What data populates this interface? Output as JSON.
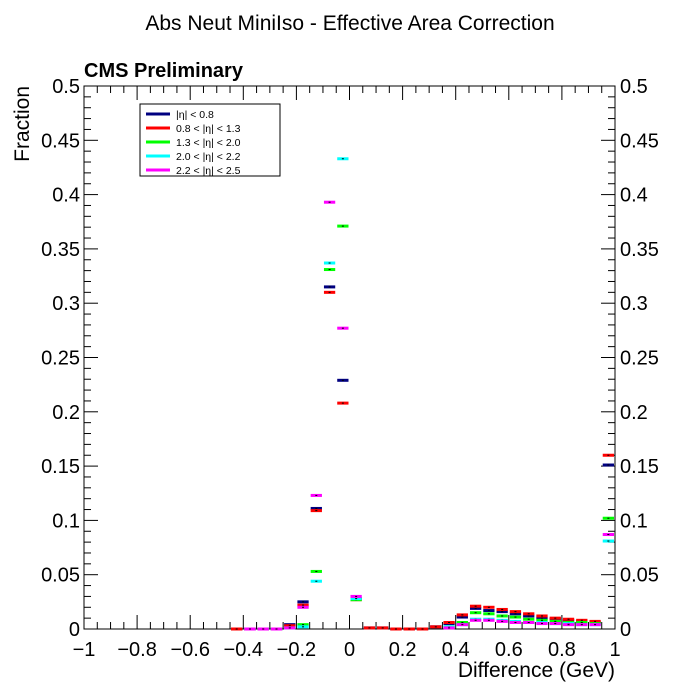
{
  "chart_data": {
    "type": "step",
    "title": "Abs Neut MiniIso - Effective Area Correction",
    "label": "CMS Preliminary",
    "xlabel": "Difference (GeV)",
    "ylabel": "Fraction",
    "xlim": [
      -1,
      1
    ],
    "ylim": [
      0,
      0.5
    ],
    "bin_width": 0.05,
    "x_ticks": [
      "−1",
      "−0.8",
      "−0.6",
      "−0.4",
      "−0.2",
      "0",
      "0.2",
      "0.4",
      "0.6",
      "0.8",
      "1"
    ],
    "x_tick_values": [
      -1,
      -0.8,
      -0.6,
      -0.4,
      -0.2,
      0,
      0.2,
      0.4,
      0.6,
      0.8,
      1
    ],
    "y_ticks_left": [
      "0",
      "0.05",
      "0.1",
      "0.15",
      "0.2",
      "0.25",
      "0.3",
      "0.35",
      "0.4",
      "0.45",
      "0.5"
    ],
    "y_ticks_right": [
      "0",
      "0.05",
      "0.1",
      "0.15",
      "0.2",
      "0.25",
      "0.3",
      "0.35",
      "0.4",
      "0.45",
      "0.5"
    ],
    "y_tick_values": [
      0,
      0.05,
      0.1,
      0.15,
      0.2,
      0.25,
      0.3,
      0.35,
      0.4,
      0.45,
      0.5
    ],
    "legend_position": "top-left",
    "series": [
      {
        "name": "|η| < 0.8",
        "color": "#000080",
        "points": [
          [
            -0.425,
            0
          ],
          [
            -0.375,
            0
          ],
          [
            -0.325,
            0
          ],
          [
            -0.275,
            0
          ],
          [
            -0.225,
            0.004
          ],
          [
            -0.175,
            0.025
          ],
          [
            -0.125,
            0.111
          ],
          [
            -0.075,
            0.315
          ],
          [
            -0.025,
            0.229
          ],
          [
            0.025,
            0.028
          ],
          [
            0.075,
            0.001
          ],
          [
            0.125,
            0.001
          ],
          [
            0.175,
            0
          ],
          [
            0.225,
            0
          ],
          [
            0.275,
            0
          ],
          [
            0.325,
            0.002
          ],
          [
            0.375,
            0.005
          ],
          [
            0.425,
            0.011
          ],
          [
            0.475,
            0.019
          ],
          [
            0.525,
            0.017
          ],
          [
            0.575,
            0.016
          ],
          [
            0.625,
            0.014
          ],
          [
            0.675,
            0.012
          ],
          [
            0.725,
            0.01
          ],
          [
            0.775,
            0.009
          ],
          [
            0.825,
            0.008
          ],
          [
            0.875,
            0.007
          ],
          [
            0.925,
            0.006
          ],
          [
            0.975,
            0.151
          ]
        ]
      },
      {
        "name": "0.8 < |η| < 1.3",
        "color": "#ff0000",
        "points": [
          [
            -0.425,
            0
          ],
          [
            -0.375,
            0
          ],
          [
            -0.325,
            0
          ],
          [
            -0.275,
            0
          ],
          [
            -0.225,
            0.003
          ],
          [
            -0.175,
            0.022
          ],
          [
            -0.125,
            0.109
          ],
          [
            -0.075,
            0.31
          ],
          [
            -0.025,
            0.208
          ],
          [
            0.025,
            0.027
          ],
          [
            0.075,
            0.001
          ],
          [
            0.125,
            0.001
          ],
          [
            0.175,
            0
          ],
          [
            0.225,
            0
          ],
          [
            0.275,
            0
          ],
          [
            0.325,
            0.002
          ],
          [
            0.375,
            0.006
          ],
          [
            0.425,
            0.013
          ],
          [
            0.475,
            0.021
          ],
          [
            0.525,
            0.02
          ],
          [
            0.575,
            0.018
          ],
          [
            0.625,
            0.016
          ],
          [
            0.675,
            0.014
          ],
          [
            0.725,
            0.012
          ],
          [
            0.775,
            0.01
          ],
          [
            0.825,
            0.009
          ],
          [
            0.875,
            0.008
          ],
          [
            0.925,
            0.007
          ],
          [
            0.975,
            0.16
          ]
        ]
      },
      {
        "name": "1.3 < |η| < 2.0",
        "color": "#00ff00",
        "points": [
          [
            -0.375,
            0
          ],
          [
            -0.325,
            0
          ],
          [
            -0.275,
            0
          ],
          [
            -0.225,
            0.001
          ],
          [
            -0.175,
            0.004
          ],
          [
            -0.125,
            0.053
          ],
          [
            -0.075,
            0.331
          ],
          [
            -0.025,
            0.371
          ],
          [
            0.025,
            0.027
          ],
          [
            0.375,
            0.002
          ],
          [
            0.425,
            0.006
          ],
          [
            0.475,
            0.015
          ],
          [
            0.525,
            0.014
          ],
          [
            0.575,
            0.012
          ],
          [
            0.625,
            0.011
          ],
          [
            0.675,
            0.009
          ],
          [
            0.725,
            0.008
          ],
          [
            0.775,
            0.007
          ],
          [
            0.825,
            0.006
          ],
          [
            0.875,
            0.006
          ],
          [
            0.925,
            0.005
          ],
          [
            0.975,
            0.102
          ]
        ]
      },
      {
        "name": "2.0 < |η| < 2.2",
        "color": "#00ffff",
        "points": [
          [
            -0.375,
            0
          ],
          [
            -0.325,
            0
          ],
          [
            -0.275,
            0
          ],
          [
            -0.225,
            0.001
          ],
          [
            -0.175,
            0.002
          ],
          [
            -0.125,
            0.044
          ],
          [
            -0.075,
            0.337
          ],
          [
            -0.025,
            0.433
          ],
          [
            0.025,
            0.028
          ],
          [
            0.375,
            0.002
          ],
          [
            0.425,
            0.004
          ],
          [
            0.475,
            0.009
          ],
          [
            0.525,
            0.009
          ],
          [
            0.575,
            0.008
          ],
          [
            0.625,
            0.007
          ],
          [
            0.675,
            0.006
          ],
          [
            0.725,
            0.006
          ],
          [
            0.775,
            0.005
          ],
          [
            0.825,
            0.005
          ],
          [
            0.875,
            0.004
          ],
          [
            0.925,
            0.004
          ],
          [
            0.975,
            0.081
          ]
        ]
      },
      {
        "name": "2.2 < |η| < 2.5",
        "color": "#ff00ff",
        "points": [
          [
            -0.375,
            0
          ],
          [
            -0.325,
            0
          ],
          [
            -0.275,
            0
          ],
          [
            -0.225,
            0.001
          ],
          [
            -0.175,
            0.02
          ],
          [
            -0.125,
            0.123
          ],
          [
            -0.075,
            0.393
          ],
          [
            -0.025,
            0.277
          ],
          [
            0.025,
            0.03
          ],
          [
            0.375,
            0.001
          ],
          [
            0.425,
            0.004
          ],
          [
            0.475,
            0.008
          ],
          [
            0.525,
            0.008
          ],
          [
            0.575,
            0.007
          ],
          [
            0.625,
            0.006
          ],
          [
            0.675,
            0.006
          ],
          [
            0.725,
            0.005
          ],
          [
            0.775,
            0.005
          ],
          [
            0.825,
            0.004
          ],
          [
            0.875,
            0.004
          ],
          [
            0.925,
            0.004
          ],
          [
            0.975,
            0.087
          ]
        ]
      }
    ]
  }
}
